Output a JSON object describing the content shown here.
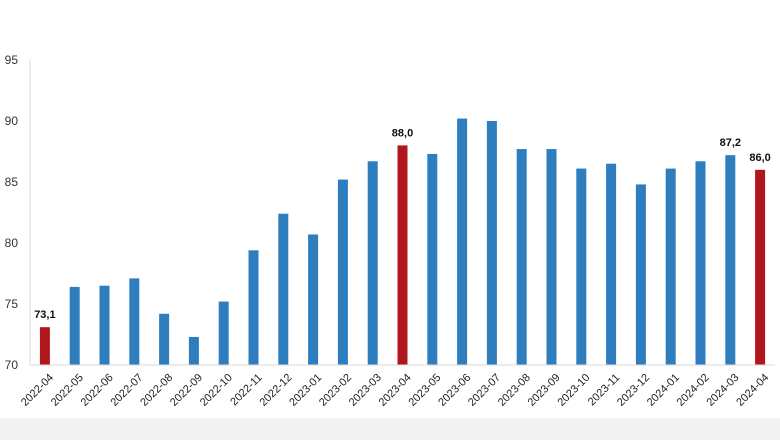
{
  "chart_data": {
    "type": "bar",
    "title": "",
    "xlabel": "",
    "ylabel": "",
    "ylim": [
      70,
      95
    ],
    "yticks": [
      70,
      75,
      80,
      85,
      90,
      95
    ],
    "grid": false,
    "legend": "none",
    "colors": {
      "default": "#2e7ebf",
      "highlight": "#b0171c"
    },
    "categories": [
      "2022-04",
      "2022-05",
      "2022-06",
      "2022-07",
      "2022-08",
      "2022-09",
      "2022-10",
      "2022-11",
      "2022-12",
      "2023-01",
      "2023-02",
      "2023-03",
      "2023-04",
      "2023-05",
      "2023-06",
      "2023-07",
      "2023-08",
      "2023-09",
      "2023-10",
      "2023-11",
      "2023-12",
      "2024-01",
      "2024-02",
      "2024-03",
      "2024-04"
    ],
    "values": [
      73.1,
      76.4,
      76.5,
      77.1,
      74.2,
      72.3,
      75.2,
      79.4,
      82.4,
      80.7,
      85.2,
      86.7,
      88.0,
      87.3,
      90.2,
      90.0,
      87.7,
      87.7,
      86.1,
      86.5,
      84.8,
      86.1,
      86.7,
      87.2,
      86.0
    ],
    "highlighted": [
      "2022-04",
      "2023-04",
      "2024-04"
    ],
    "data_labels": [
      {
        "category": "2022-04",
        "text": "73,1"
      },
      {
        "category": "2023-04",
        "text": "88,0"
      },
      {
        "category": "2024-03",
        "text": "87,2"
      },
      {
        "category": "2024-04",
        "text": "86,0"
      }
    ]
  }
}
